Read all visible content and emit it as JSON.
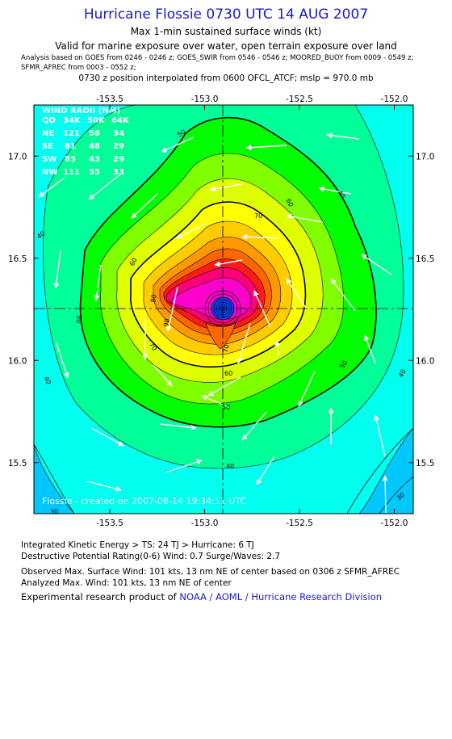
{
  "header": {
    "title": "Hurricane Flossie 0730 UTC 14 AUG 2007",
    "subtitle": "Max 1-min sustained surface winds (kt)",
    "validity": "Valid for marine exposure over water, open terrain exposure over land",
    "analysis_line1": "Analysis based on  GOES from 0246 - 0246 z;  GOES_SWIR from 0546 - 0546 z;  MOORED_BUOY from 0009 - 0549 z;",
    "analysis_line2": "SFMR_AFREC from 0003 - 0552 z;",
    "position_line": "0730 z position interpolated from 0600 OFCL_ATCF; mslp = 970.0 mb"
  },
  "map": {
    "lon_ticks": [
      "-153.5",
      "-153.0",
      "-152.5",
      "-152.0"
    ],
    "lat_ticks": [
      "17.0",
      "16.5",
      "16.0",
      "15.5"
    ],
    "lon_range": [
      -153.9,
      -151.9
    ],
    "lat_range": [
      15.25,
      17.25
    ],
    "center": {
      "lon": -152.92,
      "lat": 16.25
    },
    "contour_labels": [
      "30",
      "40",
      "50",
      "60",
      "70",
      "80",
      "90"
    ],
    "credit": "Flossie - created on 2007-08-14 19:34:11 UTC",
    "colors": {
      "kt30": "#00c8ff",
      "kt40": "#00ffee",
      "kt50": "#00ff99",
      "kt55": "#00ff00",
      "kt60": "#80ff00",
      "kt65": "#ddff00",
      "kt70": "#ffff00",
      "kt75": "#ffcc00",
      "kt80": "#ff9900",
      "kt85": "#ff6600",
      "kt90": "#ff1a1a",
      "kt95": "#ff0077",
      "kt100": "#ff00cc",
      "eye": "#0044ff"
    },
    "wind_radii": {
      "header": [
        "QD",
        "34K",
        "50K",
        "64K"
      ],
      "title": "WIND RADII (NM)",
      "rows": [
        [
          "NE",
          "121",
          "58",
          "34"
        ],
        [
          "SE",
          "81",
          "48",
          "29"
        ],
        [
          "SW",
          "85",
          "43",
          "29"
        ],
        [
          "NW",
          "111",
          "55",
          "33"
        ]
      ]
    }
  },
  "footer": {
    "ike": "Integrated Kinetic Energy > TS: 24 TJ   > Hurricane: 6 TJ",
    "dpr": "Destructive Potential Rating(0-6)   Wind: 0.7 Surge/Waves: 2.7",
    "observed": "Observed Max. Surface Wind: 101 kts, 13 nm NE of center based on 0306 z SFMR_AFREC",
    "analyzed": "Analyzed Max. Wind: 101 kts, 13 nm NE of center",
    "experimental_prefix": "Experimental research product of ",
    "experimental_link": "NOAA / AOML / Hurricane Research Division"
  }
}
